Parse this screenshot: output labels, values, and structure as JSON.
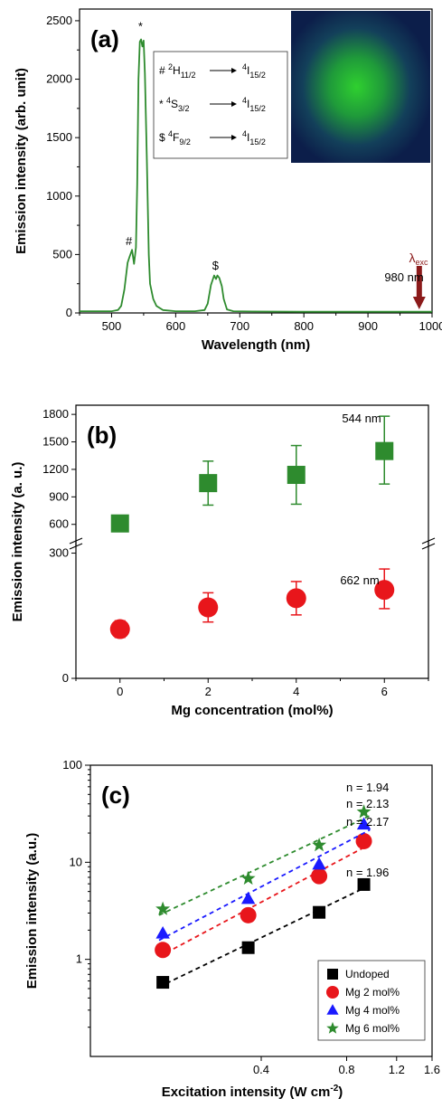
{
  "chart_data": [
    {
      "panel": "(a)",
      "type": "line",
      "xlabel": "Wavelength (nm)",
      "ylabel": "Emission intensity (arb. unit)",
      "xlim": [
        450,
        1000
      ],
      "ylim": [
        0,
        2600
      ],
      "xticks": [
        "500",
        "600",
        "700",
        "800",
        "900",
        "1000"
      ],
      "yticks": [
        "0",
        "500",
        "1000",
        "1500",
        "2000",
        "2500"
      ],
      "line_color": "#2e8b2e",
      "series": [
        {
          "x": [
            450,
            500,
            510,
            515,
            520,
            525,
            528,
            532,
            535,
            538,
            540,
            542,
            544,
            546,
            548,
            550,
            552,
            555,
            558,
            560,
            565,
            570,
            580,
            600,
            630,
            645,
            650,
            655,
            660,
            663,
            665,
            668,
            672,
            675,
            680,
            690,
            720,
            800,
            900,
            1000
          ],
          "y": [
            15,
            15,
            25,
            60,
            200,
            430,
            480,
            540,
            420,
            560,
            1100,
            2000,
            2320,
            2340,
            2280,
            2330,
            2050,
            1300,
            500,
            250,
            120,
            60,
            25,
            15,
            15,
            25,
            80,
            240,
            320,
            290,
            320,
            300,
            230,
            120,
            30,
            15,
            12,
            10,
            10,
            10
          ]
        }
      ],
      "annotations": [
        {
          "symbol": "#",
          "x": 527,
          "y": 580
        },
        {
          "symbol": "*",
          "x": 545,
          "y": 2420
        },
        {
          "symbol": "$",
          "x": 662,
          "y": 370
        }
      ],
      "legend_rows": [
        {
          "sym": "#",
          "from_main": "2",
          "from_l": "H",
          "from_sub": "11/2",
          "to_main": "4",
          "to_l": "I",
          "to_sub": "15/2"
        },
        {
          "sym": "*",
          "from_main": "4",
          "from_l": "S",
          "from_sub": "3/2",
          "to_main": "4",
          "to_l": "I",
          "to_sub": "15/2"
        },
        {
          "sym": "$",
          "from_main": "4",
          "from_l": "F",
          "from_sub": "9/2",
          "to_main": "4",
          "to_l": "I",
          "to_sub": "15/2"
        }
      ],
      "excitation": {
        "lambda": "λ",
        "sub": "exc",
        "value": "980 nm",
        "x": 980,
        "color": "#8b1a1a"
      }
    },
    {
      "panel": "(b)",
      "type": "scatter",
      "xlabel": "Mg concentration (mol%)",
      "ylabel": "Emission intensity (a. u.)",
      "xlim": [
        -1,
        7
      ],
      "xticks": [
        "0",
        "2",
        "4",
        "6"
      ],
      "yticks_upper": [
        "600",
        "900",
        "1200",
        "1500",
        "1800"
      ],
      "yticks_lower": [
        "0",
        "300"
      ],
      "axis_break": true,
      "series": [
        {
          "name": "544 nm",
          "marker": "square",
          "color": "#2e8b2e",
          "x": [
            0,
            2,
            4,
            6
          ],
          "y": [
            610,
            1050,
            1140,
            1400
          ],
          "err_low": [
            60,
            240,
            320,
            360
          ],
          "err_high": [
            60,
            240,
            320,
            380
          ]
        },
        {
          "name": "662 nm",
          "marker": "circle",
          "color": "#e8161b",
          "x": [
            0,
            2,
            4,
            6
          ],
          "y": [
            118,
            170,
            192,
            212
          ],
          "err_low": [
            20,
            35,
            40,
            45
          ],
          "err_high": [
            20,
            35,
            40,
            50
          ]
        }
      ]
    },
    {
      "panel": "(c)",
      "type": "scatter",
      "xlabel_main": "Excitation intensity (W cm",
      "xlabel_sup": "-2",
      "xlabel_end": ")",
      "ylabel": "Emission intensity (a.u.)",
      "xscale": "log",
      "yscale": "log",
      "xlim": [
        0.1,
        1.6
      ],
      "ylim": [
        0.1,
        100
      ],
      "xticks": [
        "0.4",
        "0.8",
        "1.2",
        "1.6"
      ],
      "yticks": [
        "1",
        "10",
        "100"
      ],
      "series": [
        {
          "name": "Undoped",
          "marker": "square",
          "color": "#000000",
          "x": [
            0.18,
            0.36,
            0.64,
            0.92
          ],
          "y": [
            0.58,
            1.32,
            3.05,
            5.9
          ],
          "slope_label": "n = 1.96"
        },
        {
          "name": "Mg 2 mol%",
          "marker": "circle",
          "color": "#e8161b",
          "x": [
            0.18,
            0.36,
            0.64,
            0.92
          ],
          "y": [
            1.25,
            2.85,
            7.2,
            16.5
          ],
          "slope_label": "n = 2.17"
        },
        {
          "name": "Mg 4 mol%",
          "marker": "triangle",
          "color": "#1a1aff",
          "x": [
            0.18,
            0.36,
            0.64,
            0.92
          ],
          "y": [
            1.85,
            4.2,
            9.5,
            24.5
          ],
          "slope_label": "n = 2.13"
        },
        {
          "name": "Mg 6 mol%",
          "marker": "star",
          "color": "#2e8b2e",
          "x": [
            0.18,
            0.36,
            0.64,
            0.92
          ],
          "y": [
            3.3,
            6.8,
            15.0,
            33.0
          ],
          "slope_label": "n = 1.94"
        }
      ],
      "legend_placement": "bottom-right"
    }
  ]
}
